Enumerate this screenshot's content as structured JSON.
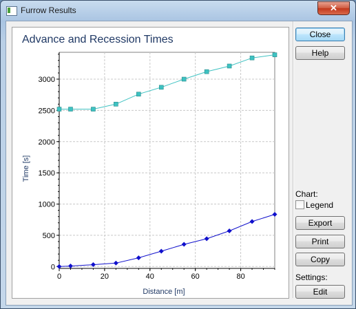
{
  "window": {
    "title": "Furrow Results",
    "close_glyph": "✕"
  },
  "buttons": {
    "close": "Close",
    "help": "Help",
    "export": "Export",
    "print": "Print",
    "copy": "Copy",
    "edit": "Edit"
  },
  "side": {
    "chart_label": "Chart:",
    "legend_label": "Legend",
    "legend_checked": false,
    "settings_label": "Settings:"
  },
  "chart_data": {
    "type": "line",
    "title": "Advance and Recession Times",
    "xlabel": "Distance [m]",
    "ylabel": "Time [s]",
    "xlim": [
      0,
      95
    ],
    "ylim": [
      -30,
      3430
    ],
    "x_ticks": [
      0,
      20,
      40,
      60,
      80
    ],
    "y_ticks": [
      0,
      500,
      1000,
      1500,
      2000,
      2500,
      3000
    ],
    "grid": true,
    "series": [
      {
        "color": "#3ec2c2",
        "marker": "square",
        "x": [
          0,
          5,
          15,
          25,
          35,
          45,
          55,
          65,
          75,
          85,
          95
        ],
        "y": [
          2520,
          2520,
          2520,
          2600,
          2760,
          2870,
          3000,
          3120,
          3210,
          3340,
          3390
        ]
      },
      {
        "color": "#1010cc",
        "marker": "diamond",
        "x": [
          0,
          5,
          15,
          25,
          35,
          45,
          55,
          65,
          75,
          85,
          95
        ],
        "y": [
          0,
          8,
          30,
          55,
          140,
          245,
          355,
          445,
          570,
          720,
          835
        ]
      }
    ]
  }
}
